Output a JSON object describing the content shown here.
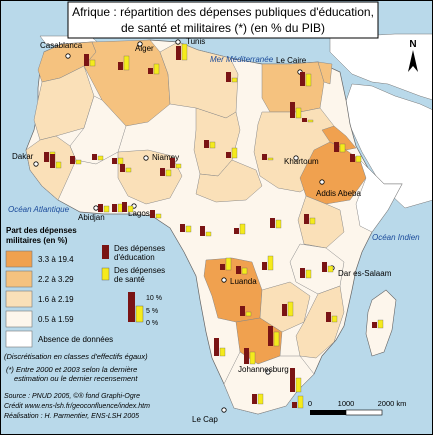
{
  "title_line1": "Afrique : répartition des dépenses publiques d'éducation,",
  "title_line2": "de santé et militaires (*) (en % du PIB)",
  "north_label": "N",
  "seas": {
    "med": "Mer Méditerranée",
    "atlantic": "Océan Atlantique",
    "indian": "Océan Indien"
  },
  "cities": [
    {
      "name": "Casablanca"
    },
    {
      "name": "Alger"
    },
    {
      "name": "Tunis"
    },
    {
      "name": "Le Caire"
    },
    {
      "name": "Dakar"
    },
    {
      "name": "Niamey"
    },
    {
      "name": "Khartoum"
    },
    {
      "name": "Addis Abeba"
    },
    {
      "name": "Abidjan"
    },
    {
      "name": "Lagos"
    },
    {
      "name": "Luanda"
    },
    {
      "name": "Dar es-Salaam"
    },
    {
      "name": "Johannesburg"
    },
    {
      "name": "Le Cap"
    }
  ],
  "legend": {
    "military_title_1": "Part des dépenses",
    "military_title_2": "militaires (en %)",
    "classes": [
      {
        "label": "3.3 à 19.4",
        "color": "#f0a14f"
      },
      {
        "label": "2.2 à 3.29",
        "color": "#f5c27f"
      },
      {
        "label": "1.6 à 2.19",
        "color": "#fae0b8"
      },
      {
        "label": "0.5 à 1.59",
        "color": "#fdf6ec"
      },
      {
        "label": "Absence de données",
        "color": "#ffffff"
      }
    ],
    "bar_edu_1": "Des dépenses",
    "bar_edu_2": "d'éducation",
    "bar_health_1": "Des dépenses",
    "bar_health_2": "de santé",
    "scale_labels": [
      "10 %",
      "5 %",
      "0 %"
    ],
    "discretisation": "(Discrétisation en classes d'effectifs égaux)"
  },
  "colors": {
    "education": "#7a1414",
    "health": "#f5ea1c",
    "sea": "#b9d9ea"
  },
  "footnote_1": "(*) Entre 2000 et 2003 selon la dernière",
  "footnote_2": "estimation ou le dernier recensement",
  "source": "Source : PNUD 2005, ©® fond Graphi-Ogre",
  "credit": "Crédit www.ens-lsh.fr/geoconfluence/index.htm",
  "realisation": "Réalisation : H. Parmentier, ENS-LSH 2005",
  "scalebar": [
    "0",
    "1000",
    "2000 km"
  ]
}
